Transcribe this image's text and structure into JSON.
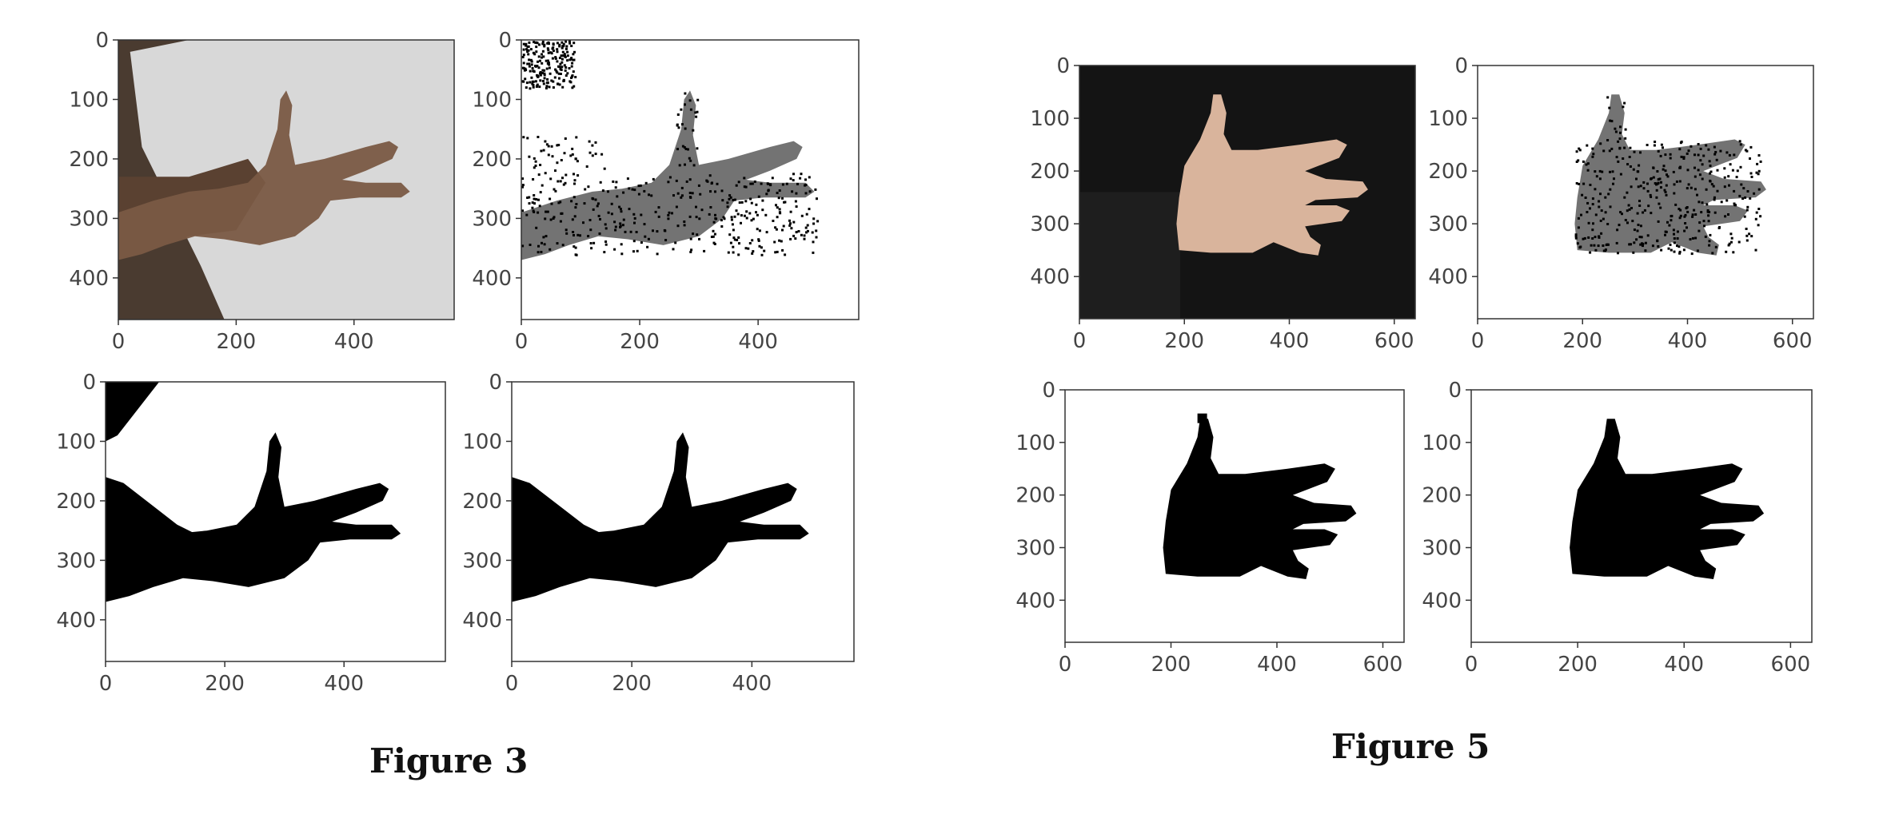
{
  "figures": [
    {
      "caption": "Figure 3",
      "panels": [
        {
          "kind": "photo",
          "xticks": [
            "0",
            "200",
            "400"
          ],
          "yticks": [
            "0",
            "100",
            "200",
            "300",
            "400"
          ]
        },
        {
          "kind": "noisy",
          "xticks": [
            "0",
            "200",
            "400"
          ],
          "yticks": [
            "0",
            "100",
            "200",
            "300",
            "400"
          ]
        },
        {
          "kind": "mask",
          "xticks": [
            "0",
            "200",
            "400"
          ],
          "yticks": [
            "0",
            "100",
            "200",
            "300",
            "400"
          ]
        },
        {
          "kind": "clean",
          "xticks": [
            "0",
            "200",
            "400"
          ],
          "yticks": [
            "0",
            "100",
            "200",
            "300",
            "400"
          ]
        }
      ]
    },
    {
      "caption": "Figure 5",
      "panels": [
        {
          "kind": "photo",
          "xticks": [
            "0",
            "200",
            "400",
            "600"
          ],
          "yticks": [
            "0",
            "100",
            "200",
            "300",
            "400"
          ]
        },
        {
          "kind": "noisy",
          "xticks": [
            "0",
            "200",
            "400",
            "600"
          ],
          "yticks": [
            "0",
            "100",
            "200",
            "300",
            "400"
          ]
        },
        {
          "kind": "mask",
          "xticks": [
            "0",
            "200",
            "400",
            "600"
          ],
          "yticks": [
            "0",
            "100",
            "200",
            "300",
            "400"
          ]
        },
        {
          "kind": "clean",
          "xticks": [
            "0",
            "200",
            "400",
            "600"
          ],
          "yticks": [
            "0",
            "100",
            "200",
            "300",
            "400"
          ]
        }
      ]
    }
  ],
  "colors": {
    "axis": "#333333",
    "tick_text": "#444444",
    "photo_bg_3": "#4a3b30",
    "shirt": "#d8d8d8",
    "skin": "#7a5a45",
    "photo_bg_5": "#141414",
    "skin_light": "#d9b49c",
    "mask": "#000000"
  }
}
